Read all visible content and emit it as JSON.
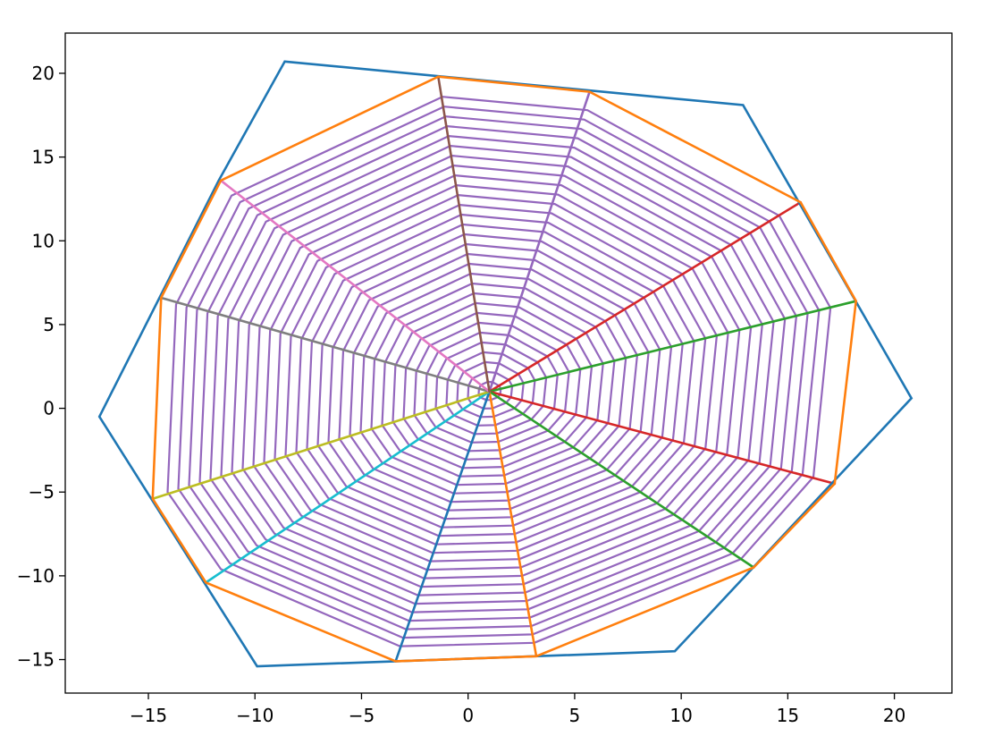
{
  "chart_data": {
    "type": "line",
    "title": "",
    "xlabel": "",
    "ylabel": "",
    "xlim": [
      -18.9,
      22.7
    ],
    "ylim": [
      -17.0,
      22.4
    ],
    "xticks": [
      -15,
      -10,
      -5,
      0,
      5,
      10,
      15,
      20
    ],
    "yticks": [
      -15,
      -10,
      -5,
      0,
      5,
      10,
      15,
      20
    ],
    "xtick_labels": [
      "−15",
      "−10",
      "−5",
      "0",
      "5",
      "10",
      "15",
      "20"
    ],
    "ytick_labels": [
      "−15",
      "−10",
      "−5",
      "0",
      "5",
      "10",
      "15",
      "20"
    ],
    "grid": false,
    "legend": "none",
    "center": [
      1.0,
      1.0
    ],
    "series": [
      {
        "color": "#1f77b4",
        "closed": true,
        "points": [
          [
            -8.6,
            20.7
          ],
          [
            12.9,
            18.1
          ],
          [
            20.8,
            0.6
          ],
          [
            9.7,
            -14.5
          ],
          [
            -9.9,
            -15.4
          ],
          [
            -17.3,
            -0.5
          ],
          [
            -11.7,
            13.6
          ]
        ]
      },
      {
        "color": "#ff7f0e",
        "closed": true,
        "points": [
          [
            -1.4,
            19.8
          ],
          [
            5.7,
            18.9
          ],
          [
            15.6,
            12.3
          ],
          [
            18.2,
            6.4
          ],
          [
            17.2,
            -4.5
          ],
          [
            13.4,
            -9.5
          ],
          [
            3.2,
            -14.8
          ],
          [
            -3.4,
            -15.1
          ],
          [
            -12.3,
            -10.4
          ],
          [
            -14.8,
            -5.4
          ],
          [
            -14.4,
            6.6
          ],
          [
            -11.6,
            13.6
          ]
        ]
      }
    ],
    "spokes": [
      {
        "end": [
          5.7,
          18.9
        ],
        "color": "#9467bd"
      },
      {
        "end": [
          15.6,
          12.3
        ],
        "color": "#d62728"
      },
      {
        "end": [
          18.2,
          6.4
        ],
        "color": "#2ca02c"
      },
      {
        "end": [
          17.2,
          -4.5
        ],
        "color": "#d62728"
      },
      {
        "end": [
          13.4,
          -9.5
        ],
        "color": "#2ca02c"
      },
      {
        "end": [
          3.2,
          -14.8
        ],
        "color": "#ff7f0e"
      },
      {
        "end": [
          -3.4,
          -15.1
        ],
        "color": "#1f77b4"
      },
      {
        "end": [
          -12.3,
          -10.4
        ],
        "color": "#17becf"
      },
      {
        "end": [
          -14.8,
          -5.4
        ],
        "color": "#bcbd22"
      },
      {
        "end": [
          -14.4,
          6.6
        ],
        "color": "#7f7f7f"
      },
      {
        "end": [
          -11.6,
          13.6
        ],
        "color": "#e377c2"
      },
      {
        "end": [
          -1.4,
          19.8
        ],
        "color": "#8c564b"
      }
    ],
    "nested_polygons": {
      "color": "#9467bd",
      "count": 30,
      "outer_points": [
        [
          5.6,
          17.8
        ],
        [
          14.6,
          11.5
        ],
        [
          17.0,
          6.0
        ],
        [
          16.2,
          -4.1
        ],
        [
          12.8,
          -9.0
        ],
        [
          3.1,
          -14.0
        ],
        [
          -3.2,
          -14.2
        ],
        [
          -11.6,
          -9.6
        ],
        [
          -14.1,
          -5.0
        ],
        [
          -13.7,
          6.2
        ],
        [
          -11.1,
          12.7
        ],
        [
          -1.2,
          18.6
        ]
      ]
    }
  }
}
